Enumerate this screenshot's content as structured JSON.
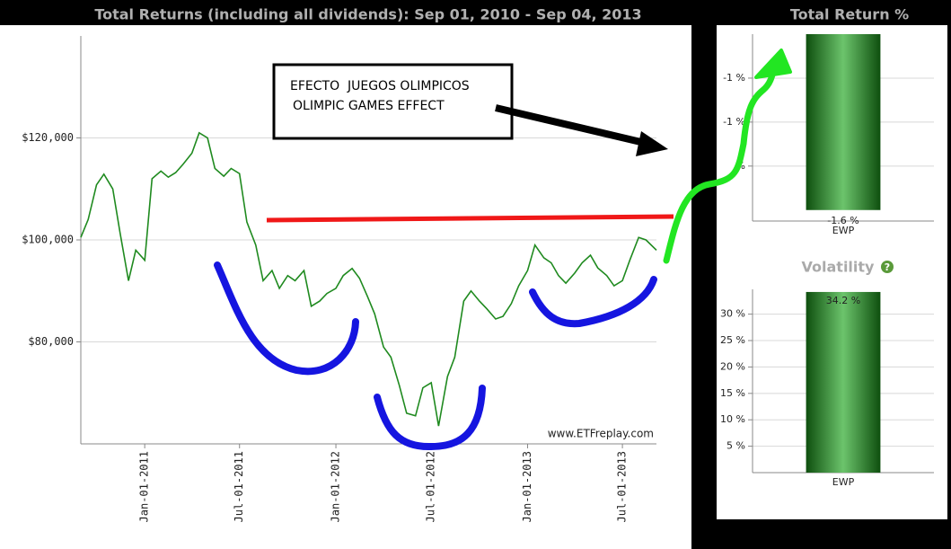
{
  "chart_data": [
    {
      "type": "line",
      "title": "Total Returns (including all dividends): Sep 01, 2010 - Sep 04, 2013",
      "annotations": [
        "EFECTO  JUEGOS OLIMPICOS",
        "OLIMPIC GAMES EFFECT"
      ],
      "source": "www.ETFreplay.com",
      "color": "#1f8a1f",
      "grid": true,
      "xlim": [
        "2010-09-01",
        "2013-09-04"
      ],
      "xticks": [
        {
          "value": "2011-01-01",
          "label": "Jan-01-2011"
        },
        {
          "value": "2011-07-01",
          "label": "Jul-01-2011"
        },
        {
          "value": "2012-01-01",
          "label": "Jan-01-2012"
        },
        {
          "value": "2012-07-01",
          "label": "Jul-01-2012"
        },
        {
          "value": "2013-01-01",
          "label": "Jan-01-2013"
        },
        {
          "value": "2013-07-01",
          "label": "Jul-01-2013"
        }
      ],
      "ylim": [
        60000,
        140000
      ],
      "yticks": [
        {
          "value": 80000,
          "label": "$80,000"
        },
        {
          "value": 100000,
          "label": "$100,000"
        },
        {
          "value": 120000,
          "label": "$120,000"
        }
      ],
      "x": [
        "2010-09-01",
        "2010-09-15",
        "2010-10-01",
        "2010-10-15",
        "2010-11-01",
        "2010-11-15",
        "2010-12-01",
        "2010-12-15",
        "2011-01-01",
        "2011-01-15",
        "2011-02-01",
        "2011-02-15",
        "2011-03-01",
        "2011-03-15",
        "2011-04-01",
        "2011-04-15",
        "2011-05-01",
        "2011-05-15",
        "2011-06-01",
        "2011-06-15",
        "2011-07-01",
        "2011-07-15",
        "2011-08-01",
        "2011-08-15",
        "2011-09-01",
        "2011-09-15",
        "2011-10-01",
        "2011-10-15",
        "2011-11-01",
        "2011-11-15",
        "2011-12-01",
        "2011-12-15",
        "2012-01-01",
        "2012-01-15",
        "2012-02-01",
        "2012-02-15",
        "2012-03-01",
        "2012-03-15",
        "2012-04-01",
        "2012-04-15",
        "2012-05-01",
        "2012-05-15",
        "2012-06-01",
        "2012-06-15",
        "2012-07-01",
        "2012-07-15",
        "2012-08-01",
        "2012-08-15",
        "2012-09-01",
        "2012-09-15",
        "2012-10-01",
        "2012-10-15",
        "2012-11-01",
        "2012-11-15",
        "2012-12-01",
        "2012-12-15",
        "2013-01-01",
        "2013-01-15",
        "2013-02-01",
        "2013-02-15",
        "2013-03-01",
        "2013-03-15",
        "2013-04-01",
        "2013-04-15",
        "2013-05-01",
        "2013-05-15",
        "2013-06-01",
        "2013-06-15",
        "2013-07-01",
        "2013-07-15",
        "2013-08-01",
        "2013-08-15",
        "2013-09-04"
      ],
      "values": [
        100500,
        104000,
        110800,
        112900,
        110000,
        101400,
        92000,
        98000,
        96000,
        112000,
        113500,
        112300,
        113200,
        114800,
        117000,
        121000,
        120000,
        114000,
        112500,
        114000,
        113000,
        103500,
        99000,
        92000,
        94000,
        90500,
        93000,
        92000,
        94000,
        87000,
        88000,
        89500,
        90500,
        93000,
        94400,
        92500,
        89000,
        85500,
        79000,
        77000,
        71500,
        66000,
        65500,
        71000,
        72000,
        63500,
        73200,
        77000,
        88000,
        90000,
        88000,
        86500,
        84500,
        85000,
        87500,
        91000,
        94000,
        99000,
        96500,
        95500,
        93000,
        91500,
        93500,
        95500,
        97000,
        94500,
        93000,
        91000,
        92000,
        96000,
        100500,
        100000,
        98000
      ]
    },
    {
      "type": "bar",
      "title": "Total Return %",
      "categories": [
        "EWP"
      ],
      "values": [
        -1.6
      ],
      "value_labels": [
        "-1.6 %"
      ],
      "color": "#6cc46c",
      "grid": true,
      "ylim": [
        -1.65,
        -0.8
      ],
      "yticks": [
        {
          "value": -1.0,
          "label": "-1 %"
        },
        {
          "value": -1.2,
          "label": "-1 %"
        },
        {
          "value": -1.4,
          "label": "%"
        }
      ]
    },
    {
      "type": "bar",
      "title": "Volatility",
      "categories": [
        "EWP"
      ],
      "values": [
        34.2
      ],
      "value_labels": [
        "34.2 %"
      ],
      "color": "#6cc46c",
      "grid": true,
      "ylim": [
        0,
        34.7
      ],
      "yticks": [
        {
          "value": 5,
          "label": "5 %"
        },
        {
          "value": 10,
          "label": "10 %"
        },
        {
          "value": 15,
          "label": "15 %"
        },
        {
          "value": 20,
          "label": "20 %"
        },
        {
          "value": 25,
          "label": "25 %"
        },
        {
          "value": 30,
          "label": "30 %"
        }
      ]
    }
  ]
}
